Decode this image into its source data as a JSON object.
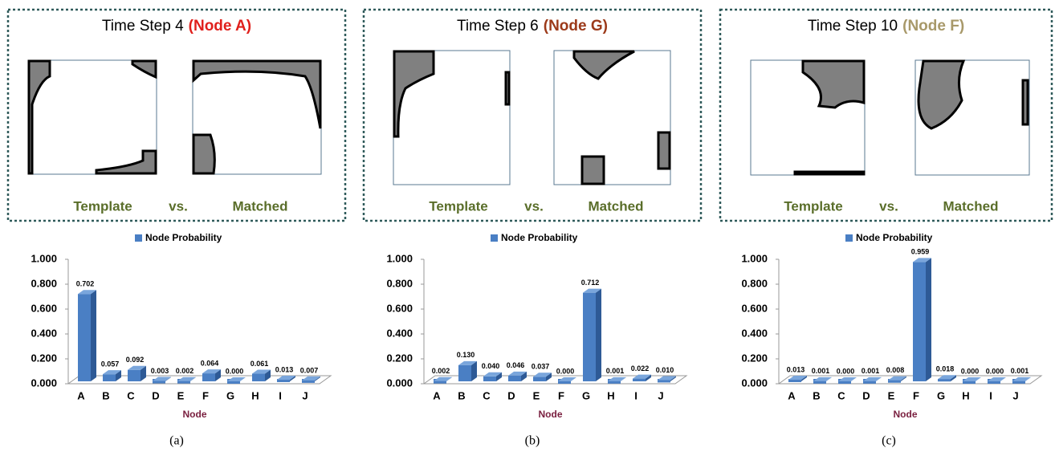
{
  "panels": [
    {
      "title": "Time Step 4",
      "node": "(Node A)",
      "node_color": "#e0201c",
      "left_label": "Template",
      "middle_label": "vs.",
      "right_label": "Matched",
      "caption": "(a)"
    },
    {
      "title": "Time Step 6",
      "node": "(Node G)",
      "node_color": "#9c3a1a",
      "left_label": "Template",
      "middle_label": "vs.",
      "right_label": "Matched",
      "caption": "(b)"
    },
    {
      "title": "Time Step 10",
      "node": "(Node F)",
      "node_color": "#a8996a",
      "left_label": "Template",
      "middle_label": "vs.",
      "right_label": "Matched",
      "caption": "(c)"
    }
  ],
  "chart_data": [
    {
      "type": "bar3d",
      "x_label": "Node",
      "categories": [
        "A",
        "B",
        "C",
        "D",
        "E",
        "F",
        "G",
        "H",
        "I",
        "J"
      ],
      "series": [
        {
          "name": "Node Probability",
          "color": "#4a7fc4",
          "values": [
            0.702,
            0.057,
            0.092,
            0.003,
            0.002,
            0.064,
            0,
            0.061,
            0.013,
            0.007
          ],
          "value_labels": [
            "0.702",
            "0.057",
            "0.092",
            "0.003",
            "0.002",
            "0.064",
            "0.000",
            "0.061",
            "0.013",
            "0.007"
          ]
        }
      ],
      "ylim": [
        0,
        1
      ],
      "yticks": [
        {
          "value": 0,
          "label": "0.000"
        },
        {
          "value": 0.2,
          "label": "0.200"
        },
        {
          "value": 0.4,
          "label": "0.400"
        },
        {
          "value": 0.6,
          "label": "0.600"
        },
        {
          "value": 0.8,
          "label": "0.800"
        },
        {
          "value": 1,
          "label": "1.000"
        }
      ]
    },
    {
      "type": "bar3d",
      "x_label": "Node",
      "categories": [
        "A",
        "B",
        "C",
        "D",
        "E",
        "F",
        "G",
        "H",
        "I",
        "J"
      ],
      "series": [
        {
          "name": "Node Probability",
          "color": "#4a7fc4",
          "values": [
            0.002,
            0.13,
            0.04,
            0.046,
            0.037,
            0,
            0.712,
            0.001,
            0.022,
            0.01
          ],
          "value_labels": [
            "0.002",
            "0.130",
            "0.040",
            "0.046",
            "0.037",
            "0.000",
            "0.712",
            "0.001",
            "0.022",
            "0.010"
          ]
        }
      ],
      "ylim": [
        0,
        1
      ],
      "yticks": [
        {
          "value": 0,
          "label": "0.000"
        },
        {
          "value": 0.2,
          "label": "0.200"
        },
        {
          "value": 0.4,
          "label": "0.400"
        },
        {
          "value": 0.6,
          "label": "0.600"
        },
        {
          "value": 0.8,
          "label": "0.800"
        },
        {
          "value": 1,
          "label": "1.000"
        }
      ]
    },
    {
      "type": "bar3d",
      "x_label": "Node",
      "categories": [
        "A",
        "B",
        "C",
        "D",
        "E",
        "F",
        "G",
        "H",
        "I",
        "J"
      ],
      "series": [
        {
          "name": "Node Probability",
          "color": "#4a7fc4",
          "values": [
            0.013,
            0.001,
            0,
            0.001,
            0.008,
            0.959,
            0.018,
            0,
            0,
            0.001
          ],
          "value_labels": [
            "0.013",
            "0.001",
            "0.000",
            "0.001",
            "0.008",
            "0.959",
            "0.018",
            "0.000",
            "0.000",
            "0.001"
          ]
        }
      ],
      "ylim": [
        0,
        1
      ],
      "yticks": [
        {
          "value": 0,
          "label": "0.000"
        },
        {
          "value": 0.2,
          "label": "0.200"
        },
        {
          "value": 0.4,
          "label": "0.400"
        },
        {
          "value": 0.6,
          "label": "0.600"
        },
        {
          "value": 0.8,
          "label": "0.800"
        },
        {
          "value": 1,
          "label": "1.000"
        }
      ]
    }
  ]
}
